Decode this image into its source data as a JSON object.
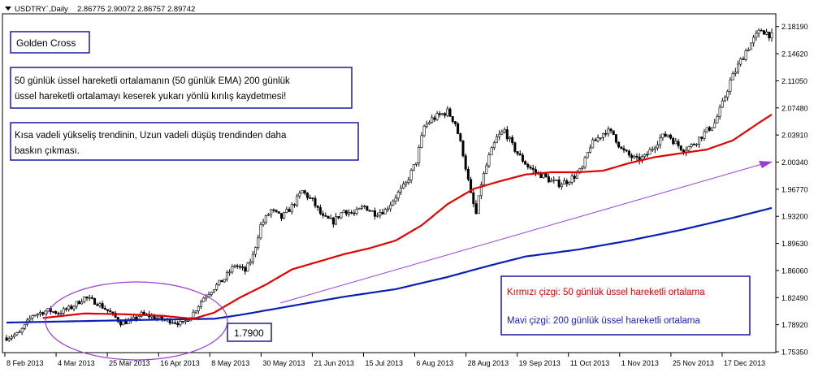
{
  "header": {
    "symbol": "USDTRY`,Daily",
    "ohlc": "2.86775 2.90072 2.86757 2.89742"
  },
  "annotations": {
    "title": "Golden Cross",
    "note1_line1": "50 günlük üssel hareketli ortalamanın (50 günlük EMA) 200 günlük",
    "note1_line2": "üssel hareketli ortalamayı keserek yukarı yönlü kırılış kaydetmesi!",
    "note2_line1": "Kısa vadeli yükseliş trendinin, Uzun vadeli düşüş trendinden daha",
    "note2_line2": "baskın çıkması.",
    "cross_price": "1.7900",
    "legend_red": "Kırmızı çizgi: 50 günlük üssel hareketli ortalama",
    "legend_blue": "Mavi çizgi: 200 günlük üssel hareketli ortalama"
  },
  "colors": {
    "candle": "#000000",
    "ema50": "#e00000",
    "ema200": "#0a1fb4",
    "arrow": "#9a3fd6",
    "ellipse": "#9a3fd6",
    "box_border": "#1a1aa0",
    "legend_red_text": "#e00000",
    "legend_blue_text": "#1a22b8"
  },
  "chart_data": {
    "type": "candlestick",
    "instrument": "USDTRY",
    "timeframe": "Daily",
    "y_ticks": [
      "2.18190",
      "2.14620",
      "2.11050",
      "2.07480",
      "2.03910",
      "2.00340",
      "1.96770",
      "1.93200",
      "1.89630",
      "1.86060",
      "1.82490",
      "1.78920",
      "1.75350"
    ],
    "ylim": [
      1.7535,
      2.1955
    ],
    "x_ticks": [
      "8 Feb 2013",
      "4 Mar 2013",
      "25 Mar 2013",
      "16 Apr 2013",
      "8 May 2013",
      "30 May 2013",
      "21 Jun 2013",
      "15 Jul 2013",
      "6 Aug 2013",
      "28 Aug 2013",
      "19 Sep 2013",
      "11 Oct 2013",
      "1 Nov 2013",
      "25 Nov 2013",
      "17 Dec 2013"
    ],
    "close_anchors": [
      [
        0,
        1.772
      ],
      [
        5,
        1.778
      ],
      [
        10,
        1.802
      ],
      [
        16,
        1.808
      ],
      [
        20,
        1.805
      ],
      [
        25,
        1.812
      ],
      [
        30,
        1.825
      ],
      [
        35,
        1.818
      ],
      [
        40,
        1.805
      ],
      [
        44,
        1.792
      ],
      [
        48,
        1.794
      ],
      [
        52,
        1.803
      ],
      [
        56,
        1.8
      ],
      [
        60,
        1.796
      ],
      [
        64,
        1.794
      ],
      [
        68,
        1.79
      ],
      [
        72,
        1.805
      ],
      [
        76,
        1.825
      ],
      [
        80,
        1.838
      ],
      [
        84,
        1.85
      ],
      [
        88,
        1.868
      ],
      [
        92,
        1.86
      ],
      [
        95,
        1.88
      ],
      [
        98,
        1.92
      ],
      [
        102,
        1.94
      ],
      [
        106,
        1.93
      ],
      [
        110,
        1.945
      ],
      [
        114,
        1.965
      ],
      [
        118,
        1.952
      ],
      [
        122,
        1.93
      ],
      [
        126,
        1.925
      ],
      [
        130,
        1.94
      ],
      [
        134,
        1.935
      ],
      [
        138,
        1.945
      ],
      [
        142,
        1.936
      ],
      [
        146,
        1.94
      ],
      [
        150,
        1.958
      ],
      [
        154,
        1.975
      ],
      [
        158,
        2.005
      ],
      [
        161,
        2.05
      ],
      [
        164,
        2.06
      ],
      [
        167,
        2.065
      ],
      [
        170,
        2.07
      ],
      [
        173,
        2.055
      ],
      [
        176,
        2.015
      ],
      [
        179,
        1.96
      ],
      [
        181,
        1.935
      ],
      [
        183,
        1.975
      ],
      [
        186,
        2.01
      ],
      [
        189,
        2.035
      ],
      [
        192,
        2.045
      ],
      [
        195,
        2.025
      ],
      [
        198,
        2.01
      ],
      [
        201,
        1.998
      ],
      [
        204,
        1.99
      ],
      [
        207,
        1.985
      ],
      [
        210,
        1.978
      ],
      [
        213,
        1.975
      ],
      [
        216,
        1.978
      ],
      [
        219,
        1.985
      ],
      [
        222,
        1.995
      ],
      [
        225,
        2.025
      ],
      [
        228,
        2.035
      ],
      [
        231,
        2.045
      ],
      [
        234,
        2.04
      ],
      [
        237,
        2.02
      ],
      [
        240,
        2.012
      ],
      [
        243,
        2.006
      ],
      [
        246,
        2.01
      ],
      [
        249,
        2.022
      ],
      [
        252,
        2.035
      ],
      [
        255,
        2.04
      ],
      [
        258,
        2.028
      ],
      [
        261,
        2.02
      ],
      [
        264,
        2.025
      ],
      [
        267,
        2.035
      ],
      [
        270,
        2.045
      ],
      [
        273,
        2.055
      ],
      [
        276,
        2.08
      ],
      [
        279,
        2.11
      ],
      [
        282,
        2.13
      ],
      [
        285,
        2.15
      ],
      [
        288,
        2.165
      ],
      [
        291,
        2.178
      ],
      [
        294,
        2.172
      ],
      [
        295,
        2.169
      ]
    ],
    "ema50_anchors": [
      [
        14,
        1.798
      ],
      [
        30,
        1.804
      ],
      [
        45,
        1.803
      ],
      [
        60,
        1.801
      ],
      [
        72,
        1.797
      ],
      [
        80,
        1.805
      ],
      [
        90,
        1.825
      ],
      [
        100,
        1.842
      ],
      [
        110,
        1.862
      ],
      [
        120,
        1.872
      ],
      [
        130,
        1.882
      ],
      [
        140,
        1.89
      ],
      [
        150,
        1.9
      ],
      [
        160,
        1.92
      ],
      [
        170,
        1.948
      ],
      [
        180,
        1.968
      ],
      [
        190,
        1.978
      ],
      [
        200,
        1.987
      ],
      [
        210,
        1.99
      ],
      [
        220,
        1.99
      ],
      [
        230,
        1.992
      ],
      [
        240,
        2.002
      ],
      [
        250,
        2.01
      ],
      [
        260,
        2.015
      ],
      [
        270,
        2.02
      ],
      [
        280,
        2.032
      ],
      [
        290,
        2.055
      ],
      [
        295,
        2.066
      ]
    ],
    "ema200_anchors": [
      [
        0,
        1.792
      ],
      [
        30,
        1.794
      ],
      [
        60,
        1.796
      ],
      [
        80,
        1.797
      ],
      [
        90,
        1.802
      ],
      [
        110,
        1.814
      ],
      [
        130,
        1.826
      ],
      [
        150,
        1.836
      ],
      [
        170,
        1.852
      ],
      [
        185,
        1.866
      ],
      [
        200,
        1.879
      ],
      [
        220,
        1.888
      ],
      [
        240,
        1.9
      ],
      [
        260,
        1.914
      ],
      [
        280,
        1.93
      ],
      [
        295,
        1.943
      ]
    ],
    "n_bars": 296
  }
}
